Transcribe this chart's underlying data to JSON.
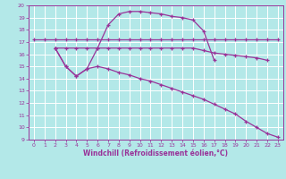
{
  "bg_color": "#b3e8e8",
  "grid_color": "#ffffff",
  "line_color": "#993399",
  "xlabel": "Windchill (Refroidissement éolien,°C)",
  "xlabel_color": "#993399",
  "ylim": [
    9,
    20
  ],
  "xlim": [
    -0.5,
    23.5
  ],
  "yticks": [
    9,
    10,
    11,
    12,
    13,
    14,
    15,
    16,
    17,
    18,
    19,
    20
  ],
  "xticks": [
    0,
    1,
    2,
    3,
    4,
    5,
    6,
    7,
    8,
    9,
    10,
    11,
    12,
    13,
    14,
    15,
    16,
    17,
    18,
    19,
    20,
    21,
    22,
    23
  ],
  "series_flat": {
    "x": [
      0,
      1,
      2,
      3,
      4,
      5,
      6,
      7,
      8,
      9,
      10,
      11,
      12,
      13,
      14,
      15,
      16,
      17,
      18,
      19,
      20,
      21,
      22,
      23
    ],
    "y": [
      17.2,
      17.2,
      17.2,
      17.2,
      17.2,
      17.2,
      17.2,
      17.2,
      17.2,
      17.2,
      17.2,
      17.2,
      17.2,
      17.2,
      17.2,
      17.2,
      17.2,
      17.2,
      17.2,
      17.2,
      17.2,
      17.2,
      17.2,
      17.2
    ]
  },
  "series_slow": {
    "x": [
      2,
      3,
      4,
      5,
      6,
      7,
      8,
      9,
      10,
      11,
      12,
      13,
      14,
      15,
      16,
      17,
      18,
      19,
      20,
      21,
      22
    ],
    "y": [
      16.5,
      16.5,
      16.5,
      16.5,
      16.5,
      16.5,
      16.5,
      16.5,
      16.5,
      16.5,
      16.5,
      16.5,
      16.5,
      16.5,
      16.3,
      16.1,
      16.0,
      15.9,
      15.8,
      15.7,
      15.5
    ]
  },
  "series_arc": {
    "x": [
      2,
      3,
      4,
      5,
      6,
      7,
      8,
      9,
      10,
      11,
      12,
      13,
      14,
      15,
      16,
      17
    ],
    "y": [
      16.5,
      15.0,
      14.2,
      14.8,
      16.5,
      18.4,
      19.3,
      19.5,
      19.5,
      19.4,
      19.3,
      19.1,
      19.0,
      18.8,
      17.9,
      15.5
    ]
  },
  "series_decline": {
    "x": [
      2,
      3,
      4,
      5,
      6,
      7,
      8,
      9,
      10,
      11,
      12,
      13,
      14,
      15,
      16,
      17,
      18,
      19,
      20,
      21,
      22,
      23
    ],
    "y": [
      16.5,
      15.0,
      14.2,
      14.8,
      15.0,
      14.8,
      14.5,
      14.3,
      14.0,
      13.8,
      13.5,
      13.2,
      12.9,
      12.6,
      12.3,
      11.9,
      11.5,
      11.1,
      10.5,
      10.0,
      9.5,
      9.2
    ]
  }
}
